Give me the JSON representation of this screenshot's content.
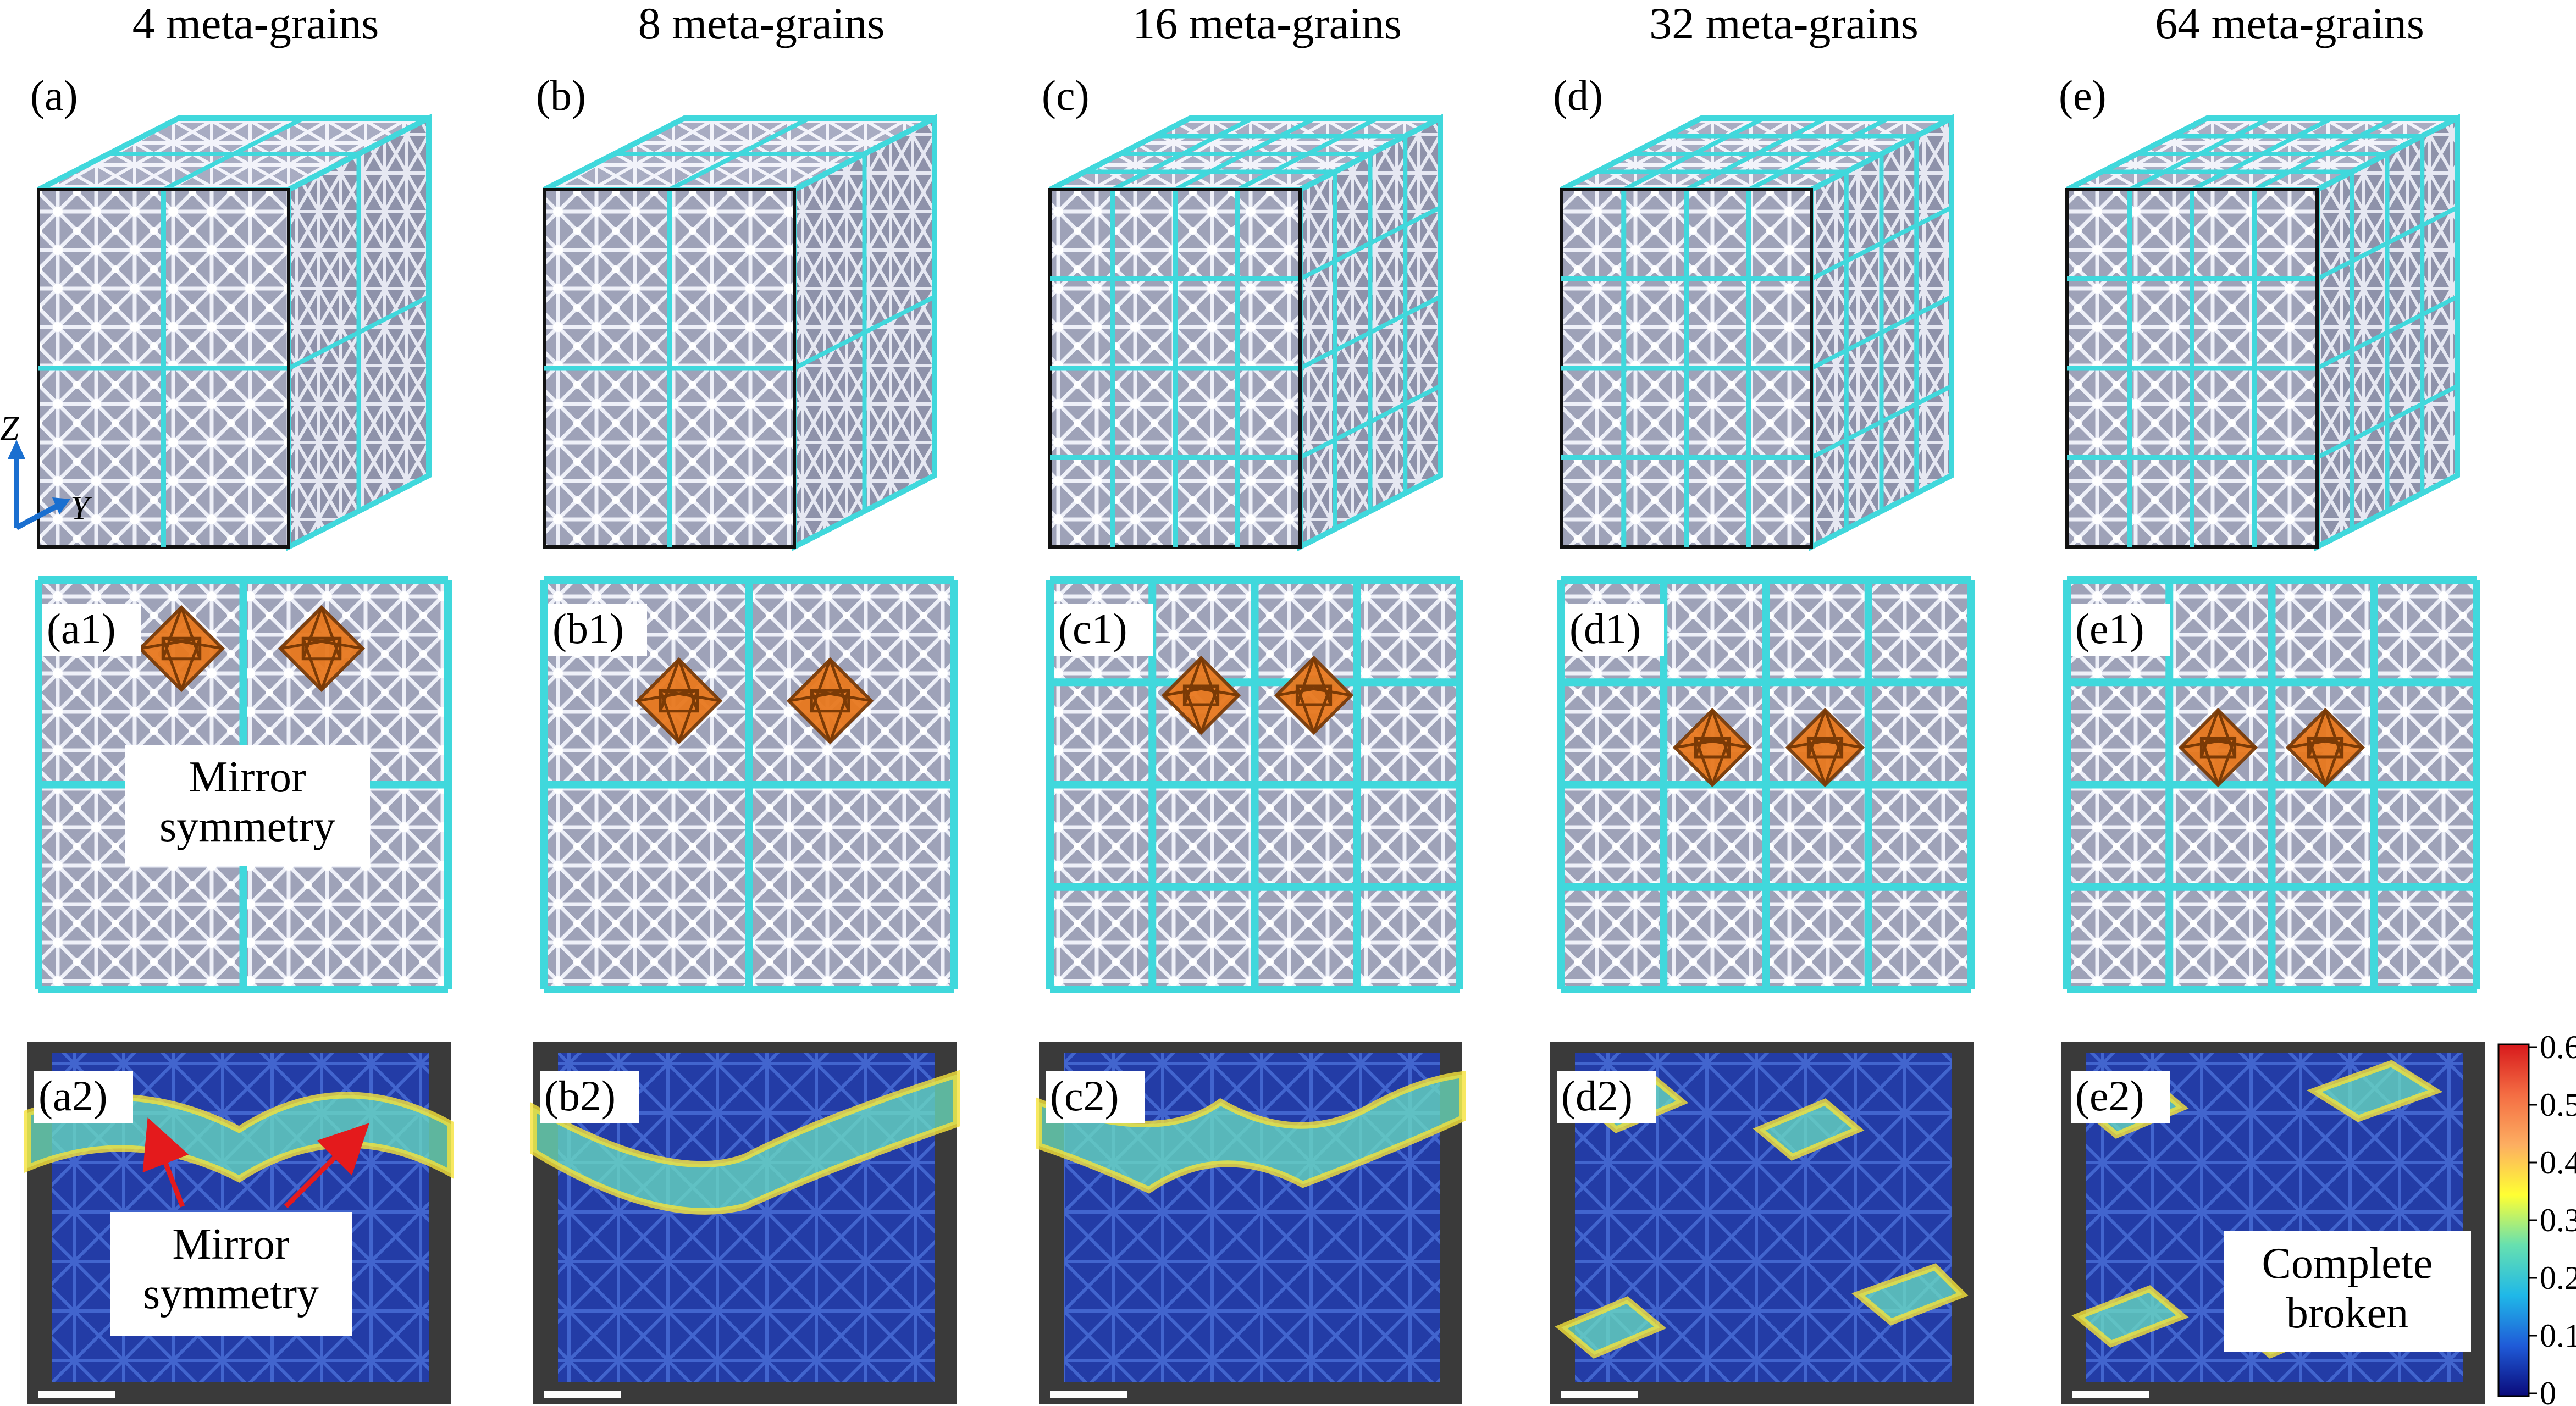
{
  "columns": [
    {
      "title": "4 meta-grains",
      "grains": 2,
      "panel_labels": {
        "cube": "(a)",
        "slice": "(a1)",
        "strain": "(a2)"
      }
    },
    {
      "title": "8 meta-grains",
      "grains": 2,
      "panel_labels": {
        "cube": "(b)",
        "slice": "(b1)",
        "strain": "(b2)"
      }
    },
    {
      "title": "16 meta-grains",
      "grains": 4,
      "panel_labels": {
        "cube": "(c)",
        "slice": "(c1)",
        "strain": "(c2)"
      }
    },
    {
      "title": "32 meta-grains",
      "grains": 4,
      "panel_labels": {
        "cube": "(d)",
        "slice": "(d1)",
        "strain": "(d2)"
      }
    },
    {
      "title": "64 meta-grains",
      "grains": 4,
      "panel_labels": {
        "cube": "(e)",
        "slice": "(e1)",
        "strain": "(e2)"
      }
    }
  ],
  "axes": {
    "z": "Z",
    "y": "Y"
  },
  "callouts": {
    "mirror_symmetry_slice": [
      "Mirror",
      "symmetry"
    ],
    "mirror_symmetry_strain": [
      "Mirror",
      "symmetry"
    ],
    "complete_broken": [
      "Complete",
      "broken"
    ]
  },
  "colorbar": {
    "ticks": [
      "0.6",
      "0.5",
      "0.4",
      "0.3",
      "0.2",
      "0.1",
      "0"
    ],
    "colors": [
      "#d7191c",
      "#f46d43",
      "#fdae61",
      "#ffff33",
      "#66e0b0",
      "#1fb8e8",
      "#1f5bd8",
      "#0a0a7a"
    ]
  },
  "colors": {
    "frame": "#40d8dc",
    "lattice": "#b8bccf",
    "octahedron": "#e8781e",
    "arrow": "#e41a1c",
    "strain_bg": "#1e3aa8"
  }
}
